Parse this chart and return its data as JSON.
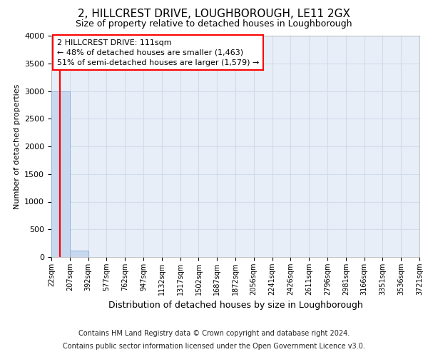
{
  "title": "2, HILLCREST DRIVE, LOUGHBOROUGH, LE11 2GX",
  "subtitle": "Size of property relative to detached houses in Loughborough",
  "xlabel": "Distribution of detached houses by size in Loughborough",
  "ylabel": "Number of detached properties",
  "bin_edges": [
    22,
    207,
    392,
    577,
    762,
    947,
    1132,
    1317,
    1502,
    1687,
    1872,
    2056,
    2241,
    2426,
    2611,
    2796,
    2981,
    3166,
    3351,
    3536,
    3721
  ],
  "bar_heights": [
    3000,
    120,
    0,
    0,
    0,
    0,
    0,
    0,
    0,
    0,
    0,
    0,
    0,
    0,
    0,
    0,
    0,
    0,
    0,
    0
  ],
  "bar_color": "#c8d8ee",
  "bar_edge_color": "#90b4d8",
  "ylim": [
    0,
    4000
  ],
  "xlim": [
    22,
    3721
  ],
  "property_size": 111,
  "annotation_line1": "2 HILLCREST DRIVE: 111sqm",
  "annotation_line2": "← 48% of detached houses are smaller (1,463)",
  "annotation_line3": "51% of semi-detached houses are larger (1,579) →",
  "footer_line1": "Contains HM Land Registry data © Crown copyright and database right 2024.",
  "footer_line2": "Contains public sector information licensed under the Open Government Licence v3.0.",
  "grid_color": "#d0dcea",
  "background_color": "#e8eef8",
  "tick_labels": [
    "22sqm",
    "207sqm",
    "392sqm",
    "577sqm",
    "762sqm",
    "947sqm",
    "1132sqm",
    "1317sqm",
    "1502sqm",
    "1687sqm",
    "1872sqm",
    "2056sqm",
    "2241sqm",
    "2426sqm",
    "2611sqm",
    "2796sqm",
    "2981sqm",
    "3166sqm",
    "3351sqm",
    "3536sqm",
    "3721sqm"
  ],
  "title_fontsize": 11,
  "subtitle_fontsize": 9,
  "ylabel_fontsize": 8,
  "xlabel_fontsize": 9,
  "ytick_fontsize": 8,
  "xtick_fontsize": 7,
  "annot_fontsize": 8,
  "footer_fontsize": 7
}
